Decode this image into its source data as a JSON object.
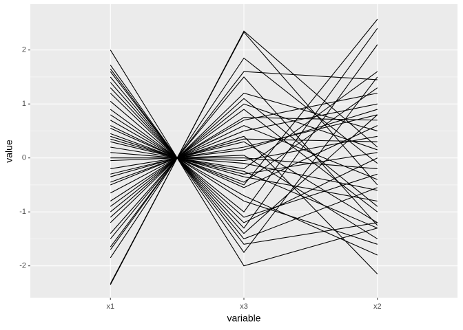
{
  "chart_data": {
    "type": "parallel",
    "x_label": "variable",
    "y_label": "value",
    "x": [
      1,
      1.5,
      2,
      3
    ],
    "xlim": [
      0.4,
      3.6
    ],
    "xticks": [
      {
        "value": 1,
        "label": "x1"
      },
      {
        "value": 2,
        "label": "x3"
      },
      {
        "value": 3,
        "label": "x2"
      }
    ],
    "ylim": [
      -2.59,
      2.85
    ],
    "yticks": [
      -2,
      -1,
      0,
      1,
      2
    ],
    "grid": true,
    "color": "#000000",
    "series": [
      {
        "values": [
          2.0,
          0,
          -1.4,
          0.8
        ]
      },
      {
        "values": [
          -2.35,
          0,
          2.35,
          0.2
        ]
      },
      {
        "values": [
          -2.33,
          0,
          2.33,
          -0.5
        ]
      },
      {
        "values": [
          1.72,
          0,
          -1.75,
          1.5
        ]
      },
      {
        "values": [
          1.65,
          0,
          -1.6,
          -1.2
        ]
      },
      {
        "values": [
          1.5,
          0,
          -1.3,
          2.1
        ]
      },
      {
        "values": [
          1.4,
          0,
          -1.1,
          -0.3
        ]
      },
      {
        "values": [
          1.2,
          0,
          -1.0,
          2.4
        ]
      },
      {
        "values": [
          1.05,
          0,
          -0.7,
          -1.8
        ]
      },
      {
        "values": [
          0.7,
          0,
          -0.55,
          0.6
        ]
      },
      {
        "values": [
          0.6,
          0,
          -0.45,
          1.3
        ]
      },
      {
        "values": [
          0.45,
          0,
          -0.35,
          -0.8
        ]
      },
      {
        "values": [
          0.4,
          0,
          -0.3,
          0.1
        ]
      },
      {
        "values": [
          0.35,
          0,
          -0.25,
          -1.3
        ]
      },
      {
        "values": [
          0.3,
          0,
          -0.2,
          1.6
        ]
      },
      {
        "values": [
          0.2,
          0,
          -0.1,
          -0.6
        ]
      },
      {
        "values": [
          0.1,
          0,
          -0.05,
          0.4
        ]
      },
      {
        "values": [
          0.0,
          0,
          0.0,
          -0.2
        ]
      },
      {
        "values": [
          -0.05,
          0,
          0.05,
          -1.5
        ]
      },
      {
        "values": [
          -0.2,
          0,
          0.15,
          0.9
        ]
      },
      {
        "values": [
          -0.3,
          0,
          0.3,
          -1.2
        ]
      },
      {
        "values": [
          -0.45,
          0,
          0.35,
          0.3
        ]
      },
      {
        "values": [
          -0.5,
          0,
          0.4,
          -2.15
        ]
      },
      {
        "values": [
          -0.65,
          0,
          0.5,
          1.0
        ]
      },
      {
        "values": [
          -0.8,
          0,
          0.6,
          -0.4
        ]
      },
      {
        "values": [
          -1.0,
          0,
          0.75,
          0.7
        ]
      },
      {
        "values": [
          -1.1,
          0,
          0.9,
          -1.0
        ]
      },
      {
        "values": [
          -1.2,
          0,
          1.0,
          0.15
        ]
      },
      {
        "values": [
          -1.4,
          0,
          1.1,
          -0.9
        ]
      },
      {
        "values": [
          -1.5,
          0,
          1.2,
          0.5
        ]
      },
      {
        "values": [
          -1.65,
          0,
          1.5,
          -1.25
        ]
      },
      {
        "values": [
          -1.7,
          0,
          1.6,
          1.45
        ]
      },
      {
        "values": [
          -1.85,
          0,
          1.85,
          -0.1
        ]
      },
      {
        "values": [
          0.9,
          0,
          -0.8,
          -1.6
        ]
      },
      {
        "values": [
          1.3,
          0,
          -1.2,
          0.0
        ]
      },
      {
        "values": [
          -0.9,
          0,
          0.7,
          1.2
        ]
      },
      {
        "values": [
          0.55,
          0,
          -0.5,
          2.57
        ]
      },
      {
        "values": [
          1.6,
          0,
          -1.5,
          -0.55
        ]
      },
      {
        "values": [
          -0.35,
          0,
          0.2,
          0.8
        ]
      },
      {
        "values": [
          0.8,
          0,
          -2.0,
          -1.3
        ]
      }
    ]
  }
}
